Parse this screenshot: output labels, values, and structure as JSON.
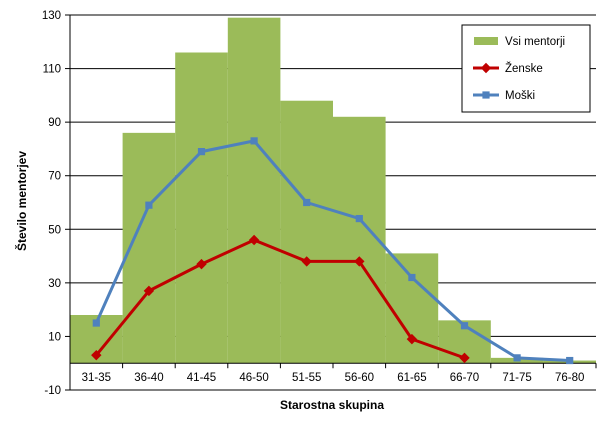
{
  "chart_data": {
    "type": "bar",
    "categories": [
      "31-35",
      "36-40",
      "41-45",
      "46-50",
      "51-55",
      "56-60",
      "61-65",
      "66-70",
      "71-75",
      "76-80"
    ],
    "series": [
      {
        "name": "Vsi mentorji",
        "kind": "bar",
        "color": "#9bbb59",
        "values": [
          18,
          86,
          116,
          129,
          98,
          92,
          41,
          16,
          2,
          1
        ]
      },
      {
        "name": "Ženske",
        "kind": "line",
        "marker": "diamond",
        "color": "#c00000",
        "values": [
          3,
          27,
          37,
          46,
          38,
          38,
          9,
          2,
          null,
          null
        ]
      },
      {
        "name": "Moški",
        "kind": "line",
        "marker": "square",
        "color": "#4f81bd",
        "values": [
          15,
          59,
          79,
          83,
          60,
          54,
          32,
          14,
          2,
          1
        ]
      }
    ],
    "xlabel": "Starostna skupina",
    "ylabel": "Število mentorjev",
    "ylim": [
      -10,
      130
    ],
    "yticks": [
      -10,
      10,
      30,
      50,
      70,
      90,
      110,
      130
    ],
    "grid": true,
    "legend": "top-right",
    "legend_entries": [
      "Vsi mentorji",
      "Ženske",
      "Moški"
    ]
  }
}
